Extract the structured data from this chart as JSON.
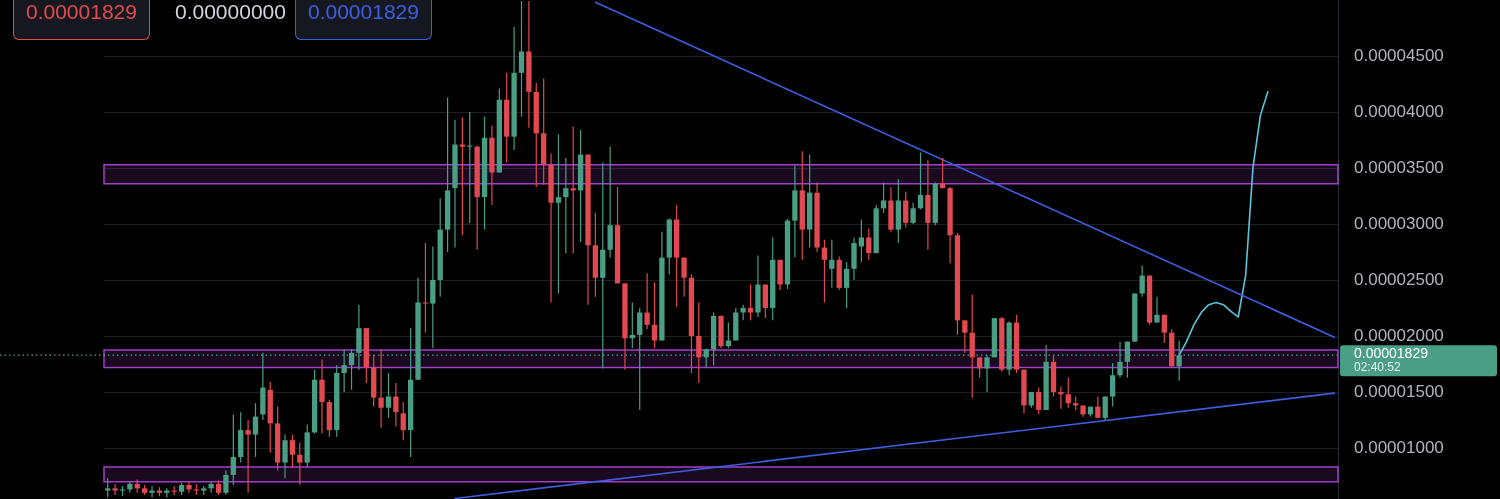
{
  "chart_data": {
    "type": "candlestick",
    "categories": [
      null,
      null,
      null,
      null,
      null,
      null,
      null,
      null,
      null,
      null,
      null,
      null,
      null,
      null,
      null,
      null,
      null,
      null,
      null,
      null,
      null,
      null,
      null,
      null,
      null,
      null,
      null,
      null,
      null,
      null,
      null,
      null,
      null,
      null,
      null,
      null,
      null,
      null,
      null,
      null,
      null,
      null,
      null,
      null,
      null,
      null,
      null,
      null,
      null,
      null,
      null,
      null,
      null,
      null,
      null,
      null,
      null,
      null,
      null,
      null,
      null,
      null,
      null,
      null,
      null,
      null,
      null,
      null,
      null,
      null,
      null,
      null,
      null,
      null,
      null,
      null,
      null,
      null,
      null,
      null,
      null,
      null,
      null,
      null,
      null,
      null,
      null,
      null,
      null,
      null,
      null,
      null,
      null,
      null,
      null,
      null,
      null,
      null,
      null,
      null,
      null,
      null,
      null,
      null,
      null,
      null,
      null,
      null,
      null,
      null,
      null,
      null,
      null,
      null,
      null,
      null,
      null,
      null,
      null,
      null,
      null,
      null,
      null,
      null,
      null,
      null,
      null,
      null,
      null,
      null,
      null,
      null,
      null,
      null,
      null,
      null,
      null,
      null,
      null,
      null,
      null,
      null,
      null,
      null,
      null,
      null,
      null,
      null,
      null,
      null,
      null,
      null,
      null,
      null,
      null,
      null,
      null,
      null,
      null,
      null,
      null,
      null,
      null,
      null,
      null,
      null,
      null
    ],
    "ohlc": [
      [
        6.2e-06,
        7.3e-06,
        5.6e-06,
        6.4e-06
      ],
      [
        6.4e-06,
        6.8e-06,
        5.8e-06,
        6.2e-06
      ],
      [
        6.2e-06,
        6.6e-06,
        5.7e-06,
        6.3e-06
      ],
      [
        6.3e-06,
        7e-06,
        6e-06,
        6.8e-06
      ],
      [
        6.8e-06,
        7.2e-06,
        6e-06,
        6.4e-06
      ],
      [
        6.4e-06,
        6.7e-06,
        5.8e-06,
        6e-06
      ],
      [
        6e-06,
        6.6e-06,
        5.6e-06,
        6.2e-06
      ],
      [
        6.2e-06,
        6.5e-06,
        5.7e-06,
        6e-06
      ],
      [
        6e-06,
        6.4e-06,
        5.6e-06,
        6.2e-06
      ],
      [
        6.2e-06,
        6.6e-06,
        5.8e-06,
        6.1e-06
      ],
      [
        6.1e-06,
        6.9e-06,
        5.8e-06,
        6.7e-06
      ],
      [
        6.7e-06,
        7e-06,
        6e-06,
        6.3e-06
      ],
      [
        6.3e-06,
        6.8e-06,
        5.8e-06,
        6.2e-06
      ],
      [
        6.2e-06,
        6.6e-06,
        5.8e-06,
        6.4e-06
      ],
      [
        6.4e-06,
        7e-06,
        6e-06,
        6.8e-06
      ],
      [
        6.8e-06,
        7.1e-06,
        5.8e-06,
        6e-06
      ],
      [
        6e-06,
        8e-06,
        5.8e-06,
        7.6e-06
      ],
      [
        7.6e-06,
        1.3e-05,
        6.7e-06,
        9.2e-06
      ],
      [
        9.2e-06,
        1.32e-05,
        8.7e-06,
        1.16e-05
      ],
      [
        1.16e-05,
        1.25e-05,
        6e-06,
        1.12e-05
      ],
      [
        1.12e-05,
        1.4e-05,
        9.2e-06,
        1.28e-05
      ],
      [
        1.3e-05,
        1.85e-05,
        1.25e-05,
        1.54e-05
      ],
      [
        1.52e-05,
        1.59e-05,
        9.6e-06,
        1.22e-05
      ],
      [
        1.22e-05,
        1.37e-05,
        8e-06,
        8.7e-06
      ],
      [
        8.7e-06,
        1.12e-05,
        7.3e-06,
        1.07e-05
      ],
      [
        1.07e-05,
        1.12e-05,
        8.2e-06,
        9.4e-06
      ],
      [
        9.4e-06,
        1.05e-05,
        6.7e-06,
        8.7e-06
      ],
      [
        8.7e-06,
        1.21e-05,
        8.3e-06,
        1.14e-05
      ],
      [
        1.14e-05,
        1.7e-05,
        1.13e-05,
        1.61e-05
      ],
      [
        1.61e-05,
        1.79e-05,
        1.13e-05,
        1.41e-05
      ],
      [
        1.41e-05,
        1.43e-05,
        1.1e-05,
        1.16e-05
      ],
      [
        1.16e-05,
        1.74e-05,
        1.1e-05,
        1.67e-05
      ],
      [
        1.67e-05,
        1.88e-05,
        1.5e-05,
        1.74e-05
      ],
      [
        1.74e-05,
        1.88e-05,
        1.52e-05,
        1.85e-05
      ],
      [
        1.85e-05,
        2.28e-05,
        1.7e-05,
        2.07e-05
      ],
      [
        2.07e-05,
        2.07e-05,
        1.58e-05,
        1.72e-05
      ],
      [
        1.72e-05,
        1.83e-05,
        1.37e-05,
        1.45e-05
      ],
      [
        1.45e-05,
        1.88e-05,
        1.18e-05,
        1.36e-05
      ],
      [
        1.36e-05,
        1.67e-05,
        1.27e-05,
        1.46e-05
      ],
      [
        1.46e-05,
        1.58e-05,
        1.19e-05,
        1.32e-05
      ],
      [
        1.31e-05,
        1.41e-05,
        1.07e-05,
        1.16e-05
      ],
      [
        1.16e-05,
        2.07e-05,
        9.2e-06,
        1.61e-05
      ],
      [
        1.61e-05,
        2.52e-05,
        1.61e-05,
        2.3e-05
      ],
      [
        2.3e-05,
        2.83e-05,
        2.03e-05,
        2.29e-05
      ],
      [
        2.29e-05,
        2.8e-05,
        1.89e-05,
        2.5e-05
      ],
      [
        2.5e-05,
        3.23e-05,
        2.35e-05,
        2.95e-05
      ],
      [
        2.95e-05,
        4.13e-05,
        2.75e-05,
        3.3e-05
      ],
      [
        3.32e-05,
        3.93e-05,
        2.79e-05,
        3.71e-05
      ],
      [
        3.71e-05,
        3.95e-05,
        2.9e-05,
        3.69e-05
      ],
      [
        3.69e-05,
        4e-05,
        3.01e-05,
        3.7e-05
      ],
      [
        3.69e-05,
        3.7e-05,
        2.77e-05,
        3.24e-05
      ],
      [
        3.24e-05,
        3.96e-05,
        2.95e-05,
        3.77e-05
      ],
      [
        3.77e-05,
        3.88e-05,
        3.17e-05,
        3.46e-05
      ],
      [
        3.46e-05,
        4.21e-05,
        3.46e-05,
        4.11e-05
      ],
      [
        4.11e-05,
        4.35e-05,
        3.55e-05,
        3.78e-05
      ],
      [
        3.78e-05,
        4.76e-05,
        3.66e-05,
        4.35e-05
      ],
      [
        4.35e-05,
        4.99e-05,
        3.96e-05,
        4.54e-05
      ],
      [
        4.54e-05,
        4.99e-05,
        3.86e-05,
        4.18e-05
      ],
      [
        4.18e-05,
        4.26e-05,
        3.33e-05,
        3.81e-05
      ],
      [
        3.81e-05,
        4.3e-05,
        3.35e-05,
        3.53e-05
      ],
      [
        3.53e-05,
        3.63e-05,
        2.3e-05,
        3.19e-05
      ],
      [
        3.19e-05,
        3.8e-05,
        2.38e-05,
        3.24e-05
      ],
      [
        3.24e-05,
        3.59e-05,
        2.74e-05,
        3.32e-05
      ],
      [
        3.32e-05,
        3.87e-05,
        2.74e-05,
        3.3e-05
      ],
      [
        3.3e-05,
        3.84e-05,
        2.84e-05,
        3.62e-05
      ],
      [
        3.62e-05,
        3.62e-05,
        2.28e-05,
        2.81e-05
      ],
      [
        2.81e-05,
        3.1e-05,
        2.35e-05,
        2.52e-05
      ],
      [
        2.52e-05,
        3.55e-05,
        1.71e-05,
        2.77e-05
      ],
      [
        2.77e-05,
        3.69e-05,
        2.7e-05,
        2.99e-05
      ],
      [
        2.99e-05,
        3.33e-05,
        2.47e-05,
        2.47e-05
      ],
      [
        2.47e-05,
        2.47e-05,
        1.7e-05,
        1.98e-05
      ],
      [
        1.98e-05,
        2.3e-05,
        1.89e-05,
        2.01e-05
      ],
      [
        2.01e-05,
        2.25e-05,
        1.34e-05,
        2.21e-05
      ],
      [
        2.21e-05,
        2.56e-05,
        2.06e-05,
        2.1e-05
      ],
      [
        2.1e-05,
        2.48e-05,
        1.89e-05,
        1.96e-05
      ],
      [
        1.96e-05,
        2.93e-05,
        1.96e-05,
        2.7e-05
      ],
      [
        2.7e-05,
        3.05e-05,
        2.55e-05,
        3.04e-05
      ],
      [
        3.04e-05,
        3.17e-05,
        2.26e-05,
        2.7e-05
      ],
      [
        2.7e-05,
        2.7e-05,
        2.35e-05,
        2.52e-05
      ],
      [
        2.52e-05,
        2.55e-05,
        1.67e-05,
        2e-05
      ],
      [
        2e-05,
        2.3e-05,
        1.58e-05,
        1.81e-05
      ],
      [
        1.81e-05,
        1.89e-05,
        1.72e-05,
        1.88e-05
      ],
      [
        1.88e-05,
        2.21e-05,
        1.74e-05,
        2.18e-05
      ],
      [
        2.18e-05,
        2.18e-05,
        1.89e-05,
        1.91e-05
      ],
      [
        1.91e-05,
        2.12e-05,
        1.89e-05,
        1.96e-05
      ],
      [
        1.96e-05,
        2.25e-05,
        1.96e-05,
        2.21e-05
      ],
      [
        2.21e-05,
        2.28e-05,
        2.14e-05,
        2.25e-05
      ],
      [
        2.25e-05,
        2.46e-05,
        2.14e-05,
        2.21e-05
      ],
      [
        2.21e-05,
        2.72e-05,
        2.17e-05,
        2.46e-05
      ],
      [
        2.46e-05,
        2.46e-05,
        2.16e-05,
        2.25e-05
      ],
      [
        2.25e-05,
        2.88e-05,
        2.14e-05,
        2.68e-05
      ],
      [
        2.68e-05,
        2.68e-05,
        2.41e-05,
        2.46e-05
      ],
      [
        2.46e-05,
        3.05e-05,
        2.42e-05,
        3.03e-05
      ],
      [
        3.03e-05,
        3.52e-05,
        2.7e-05,
        3.3e-05
      ],
      [
        3.3e-05,
        3.65e-05,
        2.68e-05,
        2.95e-05
      ],
      [
        2.95e-05,
        3.62e-05,
        2.79e-05,
        3.28e-05
      ],
      [
        3.28e-05,
        3.37e-05,
        2.75e-05,
        2.79e-05
      ],
      [
        2.79e-05,
        2.86e-05,
        2.3e-05,
        2.68e-05
      ],
      [
        2.6e-05,
        2.86e-05,
        2.43e-05,
        2.68e-05
      ],
      [
        2.68e-05,
        2.71e-05,
        2.41e-05,
        2.43e-05
      ],
      [
        2.43e-05,
        2.66e-05,
        2.25e-05,
        2.6e-05
      ],
      [
        2.6e-05,
        2.88e-05,
        2.5e-05,
        2.83e-05
      ],
      [
        2.8e-05,
        3.04e-05,
        2.66e-05,
        2.88e-05
      ],
      [
        2.88e-05,
        2.96e-05,
        2.68e-05,
        2.74e-05
      ],
      [
        2.74e-05,
        3.17e-05,
        2.74e-05,
        3.14e-05
      ],
      [
        3.14e-05,
        3.37e-05,
        3.1e-05,
        3.21e-05
      ],
      [
        3.21e-05,
        3.33e-05,
        2.93e-05,
        2.95e-05
      ],
      [
        2.95e-05,
        3.4e-05,
        2.83e-05,
        3.21e-05
      ],
      [
        3.21e-05,
        3.29e-05,
        2.97e-05,
        3.01e-05
      ],
      [
        3.01e-05,
        3.19e-05,
        3e-05,
        3.14e-05
      ],
      [
        3.14e-05,
        3.64e-05,
        3.13e-05,
        3.26e-05
      ],
      [
        3.26e-05,
        3.57e-05,
        2.77e-05,
        3.01e-05
      ],
      [
        3.01e-05,
        3.37e-05,
        2.99e-05,
        3.36e-05
      ],
      [
        3.36e-05,
        3.59e-05,
        3.32e-05,
        3.32e-05
      ],
      [
        3.32e-05,
        3.33e-05,
        2.65e-05,
        2.9e-05
      ],
      [
        2.9e-05,
        2.92e-05,
        2.01e-05,
        2.14e-05
      ],
      [
        2.14e-05,
        2.14e-05,
        1.85e-05,
        2.03e-05
      ],
      [
        2.03e-05,
        2.37e-05,
        1.45e-05,
        1.81e-05
      ],
      [
        1.81e-05,
        1.81e-05,
        1.63e-05,
        1.71e-05
      ],
      [
        1.71e-05,
        1.83e-05,
        1.5e-05,
        1.81e-05
      ],
      [
        1.81e-05,
        2.16e-05,
        1.81e-05,
        2.16e-05
      ],
      [
        2.16e-05,
        2.17e-05,
        1.68e-05,
        1.7e-05
      ],
      [
        1.7e-05,
        2.13e-05,
        1.65e-05,
        2.12e-05
      ],
      [
        2.12e-05,
        2.19e-05,
        1.67e-05,
        1.7e-05
      ],
      [
        1.7e-05,
        1.7e-05,
        1.31e-05,
        1.38e-05
      ],
      [
        1.38e-05,
        1.5e-05,
        1.36e-05,
        1.5e-05
      ],
      [
        1.5e-05,
        1.54e-05,
        1.3e-05,
        1.34e-05
      ],
      [
        1.34e-05,
        1.92e-05,
        1.34e-05,
        1.77e-05
      ],
      [
        1.77e-05,
        1.83e-05,
        1.46e-05,
        1.5e-05
      ],
      [
        1.5e-05,
        1.55e-05,
        1.35e-05,
        1.48e-05
      ],
      [
        1.48e-05,
        1.63e-05,
        1.36e-05,
        1.4e-05
      ],
      [
        1.4e-05,
        1.46e-05,
        1.34e-05,
        1.38e-05
      ],
      [
        1.38e-05,
        1.38e-05,
        1.28e-05,
        1.3e-05
      ],
      [
        1.3e-05,
        1.37e-05,
        1.28e-05,
        1.37e-05
      ],
      [
        1.37e-05,
        1.46e-05,
        1.27e-05,
        1.27e-05
      ],
      [
        1.27e-05,
        1.46e-05,
        1.25e-05,
        1.46e-05
      ],
      [
        1.46e-05,
        1.76e-05,
        1.37e-05,
        1.65e-05
      ],
      [
        1.65e-05,
        1.95e-05,
        1.63e-05,
        1.77e-05
      ],
      [
        1.77e-05,
        1.95e-05,
        1.63e-05,
        1.95e-05
      ],
      [
        1.95e-05,
        2.38e-05,
        1.95e-05,
        2.38e-05
      ],
      [
        2.38e-05,
        2.63e-05,
        2.35e-05,
        2.54e-05
      ],
      [
        2.54e-05,
        2.54e-05,
        2.1e-05,
        2.12e-05
      ],
      [
        2.12e-05,
        2.35e-05,
        2.12e-05,
        2.19e-05
      ],
      [
        2.19e-05,
        2.19e-05,
        1.94e-05,
        2.03e-05
      ],
      [
        2.03e-05,
        2.06e-05,
        1.73e-05,
        1.73e-05
      ],
      [
        1.73e-05,
        1.96e-05,
        1.6e-05,
        1.829e-05
      ],
      null,
      null,
      null,
      null,
      null,
      null,
      null,
      null,
      null,
      null,
      null,
      null,
      null,
      null,
      null,
      null,
      null,
      null,
      null,
      null,
      null
    ],
    "colors": [
      "#4a9e85",
      "#e04a50",
      "#4a9e85",
      "#4a9e85",
      "#e04a50",
      "#e04a50",
      "#4a9e85",
      "#e04a50",
      "#4a9e85",
      "#e04a50",
      "#4a9e85",
      "#e04a50",
      "#e04a50",
      "#4a9e85",
      "#4a9e85",
      "#e04a50",
      "#4a9e85",
      "#4a9e85",
      "#4a9e85",
      "#e04a50",
      "#4a9e85",
      "#4a9e85",
      "#e04a50",
      "#e04a50",
      "#4a9e85",
      "#e04a50",
      "#e04a50",
      "#4a9e85",
      "#4a9e85",
      "#e04a50",
      "#e04a50",
      "#4a9e85",
      "#4a9e85",
      "#4a9e85",
      "#4a9e85",
      "#e04a50",
      "#e04a50",
      "#e04a50",
      "#4a9e85",
      "#e04a50",
      "#e04a50",
      "#4a9e85",
      "#4a9e85",
      "#e04a50",
      "#4a9e85",
      "#4a9e85",
      "#4a9e85",
      "#4a9e85",
      "#e04a50",
      "#4a9e85",
      "#e04a50",
      "#4a9e85",
      "#e04a50",
      "#4a9e85",
      "#e04a50",
      "#4a9e85",
      "#4a9e85",
      "#e04a50",
      "#e04a50",
      "#e04a50",
      "#e04a50",
      "#4a9e85",
      "#4a9e85",
      "#e04a50",
      "#4a9e85",
      "#e04a50",
      "#e04a50",
      "#4a9e85",
      "#4a9e85",
      "#e04a50",
      "#e04a50",
      "#4a9e85",
      "#4a9e85",
      "#e04a50",
      "#e04a50",
      "#4a9e85",
      "#4a9e85",
      "#e04a50",
      "#e04a50",
      "#e04a50",
      "#e04a50",
      "#4a9e85",
      "#4a9e85",
      "#e04a50",
      "#4a9e85",
      "#4a9e85",
      "#4a9e85",
      "#e04a50",
      "#4a9e85",
      "#e04a50",
      "#4a9e85",
      "#e04a50",
      "#4a9e85",
      "#4a9e85",
      "#e04a50",
      "#4a9e85",
      "#e04a50",
      "#e04a50",
      "#4a9e85",
      "#e04a50",
      "#4a9e85",
      "#4a9e85",
      "#4a9e85",
      "#e04a50",
      "#4a9e85",
      "#4a9e85",
      "#e04a50",
      "#4a9e85",
      "#e04a50",
      "#4a9e85",
      "#4a9e85",
      "#e04a50",
      "#4a9e85",
      "#e04a50",
      "#e04a50",
      "#e04a50",
      "#e04a50",
      "#e04a50",
      "#e04a50",
      "#4a9e85",
      "#4a9e85",
      "#e04a50",
      "#4a9e85",
      "#e04a50",
      "#e04a50",
      "#4a9e85",
      "#e04a50",
      "#4a9e85",
      "#e04a50",
      "#e04a50",
      "#e04a50",
      "#e04a50",
      "#e04a50",
      "#4a9e85",
      "#e04a50",
      "#4a9e85",
      "#4a9e85",
      "#4a9e85",
      "#4a9e85",
      "#4a9e85",
      "#4a9e85",
      "#e04a50",
      "#4a9e85",
      "#e04a50",
      "#e04a50",
      "#4a9e85",
      null,
      null,
      null,
      null,
      null,
      null,
      null,
      null,
      null,
      null,
      null,
      null,
      null,
      null,
      null,
      null,
      null,
      null,
      null,
      null,
      null
    ],
    "series": [
      {
        "type": "line",
        "color": "#3d5ee0",
        "values": [
          null,
          null,
          null,
          null,
          null,
          null,
          null,
          null,
          null,
          null,
          null,
          null,
          null,
          null,
          null,
          null,
          null,
          null,
          null,
          null,
          null,
          null,
          null,
          null,
          null,
          null,
          null,
          null,
          null,
          null,
          null,
          null,
          null,
          null,
          null,
          null,
          null,
          null,
          null,
          null,
          null,
          null,
          null,
          null,
          null,
          null,
          null,
          null,
          null,
          null,
          null,
          null,
          null,
          null,
          null,
          null,
          null,
          null,
          null,
          null,
          null,
          null,
          null,
          null,
          null,
          null,
          4.98e-05,
          null,
          null,
          null,
          null,
          null,
          null,
          null,
          null,
          null,
          null,
          null,
          null,
          null,
          null,
          null,
          null,
          null,
          null,
          null,
          null,
          null,
          null,
          null,
          null,
          null,
          null,
          null,
          null,
          null,
          null,
          null,
          null,
          null,
          null,
          null,
          null,
          null,
          null,
          null,
          null,
          null,
          null,
          null,
          null,
          null,
          null,
          null,
          null,
          null,
          null,
          null,
          null,
          null,
          null,
          null,
          null,
          null,
          null,
          null,
          null,
          null,
          null,
          null,
          null,
          null,
          null,
          null,
          null,
          null,
          null,
          null,
          null,
          null,
          null,
          null,
          null,
          null,
          null,
          null,
          null,
          null,
          null,
          null,
          null,
          null,
          null,
          null,
          null,
          null,
          null,
          null,
          null,
          null,
          null,
          null,
          null,
          null,
          null,
          null,
          1.99e-05
        ]
      },
      {
        "type": "line",
        "color": "#3d5ee0",
        "values": [
          null,
          null,
          null,
          null,
          null,
          null,
          null,
          null,
          null,
          null,
          null,
          null,
          null,
          null,
          null,
          null,
          null,
          null,
          null,
          null,
          null,
          null,
          null,
          null,
          null,
          null,
          null,
          null,
          null,
          null,
          null,
          null,
          null,
          null,
          null,
          null,
          null,
          null,
          null,
          null,
          null,
          null,
          null,
          null,
          null,
          null,
          null,
          5.5e-06,
          null,
          null,
          null,
          null,
          null,
          null,
          null,
          null,
          null,
          null,
          null,
          null,
          null,
          null,
          null,
          null,
          null,
          null,
          null,
          null,
          null,
          null,
          null,
          null,
          null,
          null,
          null,
          null,
          null,
          null,
          null,
          null,
          null,
          null,
          null,
          null,
          null,
          null,
          null,
          null,
          null,
          null,
          null,
          null,
          null,
          null,
          null,
          null,
          null,
          null,
          null,
          null,
          null,
          null,
          null,
          null,
          null,
          null,
          null,
          null,
          null,
          null,
          null,
          null,
          null,
          null,
          null,
          null,
          null,
          null,
          null,
          null,
          null,
          null,
          null,
          null,
          null,
          null,
          null,
          null,
          null,
          null,
          null,
          null,
          null,
          null,
          null,
          null,
          null,
          null,
          null,
          null,
          null,
          null,
          null,
          null,
          null,
          null,
          null,
          null,
          null,
          null,
          null,
          null,
          null,
          null,
          null,
          null,
          null,
          null,
          null,
          null,
          null,
          null,
          null,
          null,
          null,
          null,
          1.49e-05
        ]
      },
      {
        "type": "line",
        "color": "#5cc4d9",
        "values": [
          null,
          null,
          null,
          null,
          null,
          null,
          null,
          null,
          null,
          null,
          null,
          null,
          null,
          null,
          null,
          null,
          null,
          null,
          null,
          null,
          null,
          null,
          null,
          null,
          null,
          null,
          null,
          null,
          null,
          null,
          null,
          null,
          null,
          null,
          null,
          null,
          null,
          null,
          null,
          null,
          null,
          null,
          null,
          null,
          null,
          null,
          null,
          null,
          null,
          null,
          null,
          null,
          null,
          null,
          null,
          null,
          null,
          null,
          null,
          null,
          null,
          null,
          null,
          null,
          null,
          null,
          null,
          null,
          null,
          null,
          null,
          null,
          null,
          null,
          null,
          null,
          null,
          null,
          null,
          null,
          null,
          null,
          null,
          null,
          null,
          null,
          null,
          null,
          null,
          null,
          null,
          null,
          null,
          null,
          null,
          null,
          null,
          null,
          null,
          null,
          null,
          null,
          null,
          null,
          null,
          null,
          null,
          null,
          null,
          null,
          null,
          null,
          null,
          null,
          null,
          null,
          null,
          null,
          null,
          null,
          null,
          null,
          null,
          null,
          null,
          null,
          null,
          null,
          null,
          null,
          null,
          null,
          null,
          null,
          null,
          null,
          null,
          null,
          null,
          null,
          null,
          null,
          null,
          null,
          null,
          1.83e-05,
          1.95e-05,
          2.1e-05,
          2.21e-05,
          2.28e-05,
          2.3e-05,
          2.28e-05,
          2.22e-05,
          2.17e-05,
          2.54e-05,
          3.51e-05,
          3.97e-05,
          4.18e-05,
          null,
          null,
          null,
          null,
          null,
          null,
          null,
          null,
          null
        ]
      }
    ],
    "ylim": [
      5.45e-06,
      5e-05
    ],
    "yticks": [
      {
        "value": 1e-05,
        "label": "0.00001000"
      },
      {
        "value": 1.5e-05,
        "label": "0.00001500"
      },
      {
        "value": 2e-05,
        "label": "0.00002000"
      },
      {
        "value": 2.5e-05,
        "label": "0.00002500"
      },
      {
        "value": 3e-05,
        "label": "0.00003000"
      },
      {
        "value": 3.5e-05,
        "label": "0.00003500"
      },
      {
        "value": 4e-05,
        "label": "0.00004000"
      },
      {
        "value": 4.5e-05,
        "label": "0.00004500"
      }
    ],
    "bands": [
      {
        "axis": "y",
        "from": 3.36e-05,
        "to": 3.53e-05,
        "color": "#a040c8"
      },
      {
        "axis": "y",
        "from": 1.72e-05,
        "to": 1.875e-05,
        "color": "#a040c8"
      },
      {
        "axis": "y",
        "from": 7e-06,
        "to": 8.3e-06,
        "color": "#a040c8"
      }
    ],
    "ref_lines": [
      {
        "axis": "y",
        "value": 1.829e-05,
        "label": "0.00001829",
        "color": "#4a9e85",
        "line_style": "dotted"
      }
    ],
    "annotations": [
      "0.00001829",
      "0.00000000",
      "0.00001829",
      "02:40:52"
    ],
    "grid": "y",
    "legend": false,
    "tick_labels": "y"
  }
}
